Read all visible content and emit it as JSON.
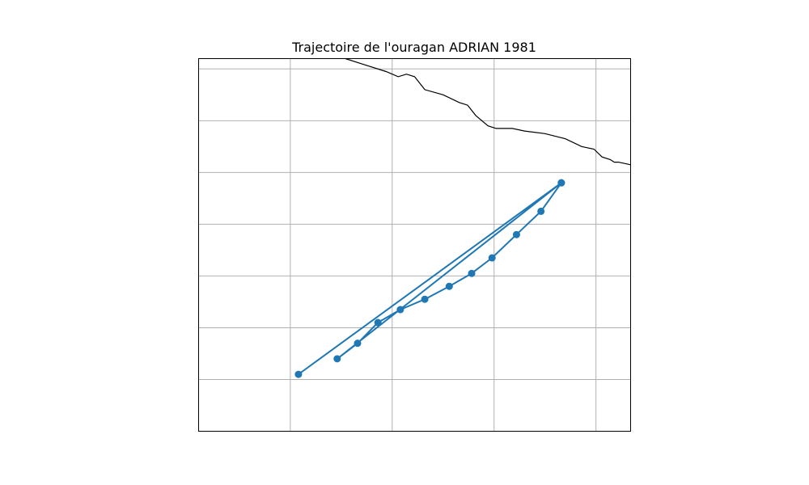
{
  "title": "Trajectoire de l'ouragan ADRIAN 1981",
  "colors": {
    "track": "#1f77b4",
    "grid": "#b0b0b0",
    "coast": "#000000",
    "background": "#ffffff"
  },
  "chart_data": {
    "type": "line",
    "title": "Trajectoire de l'ouragan ADRIAN 1981",
    "map_projection": "PlateCarree",
    "extent_lon": [
      -109.5,
      -98.9
    ],
    "extent_lat": [
      10.0,
      17.2
    ],
    "gridlines": true,
    "grid_lon": [
      -107.25,
      -104.75,
      -102.25,
      -99.75
    ],
    "grid_lat": [
      11.0,
      12.0,
      13.0,
      14.0,
      15.0,
      16.0,
      17.0
    ],
    "series": [
      {
        "lon": [
          -100.6,
          -101.1,
          -101.7,
          -102.3,
          -102.8,
          -103.35,
          -103.95,
          -104.55,
          -105.1,
          -105.6,
          -106.1,
          -100.6,
          -107.05
        ],
        "lat": [
          14.8,
          14.25,
          13.8,
          13.35,
          13.05,
          12.8,
          12.55,
          12.35,
          12.1,
          11.7,
          11.4,
          14.8,
          11.1
        ]
      }
    ],
    "coastline": {
      "lon": [
        -105.9,
        -105.5,
        -104.9,
        -104.6,
        -104.4,
        -104.2,
        -104.05,
        -103.95,
        -103.5,
        -103.1,
        -102.9,
        -102.7,
        -102.4,
        -102.2,
        -101.8,
        -101.5,
        -101.0,
        -100.5,
        -100.1,
        -99.8,
        -99.6,
        -99.4,
        -99.3,
        -99.2,
        -98.9
      ],
      "lat": [
        17.2,
        17.1,
        16.95,
        16.85,
        16.9,
        16.85,
        16.7,
        16.6,
        16.5,
        16.35,
        16.3,
        16.1,
        15.9,
        15.85,
        15.85,
        15.8,
        15.75,
        15.65,
        15.5,
        15.45,
        15.3,
        15.25,
        15.2,
        15.2,
        15.15
      ]
    }
  }
}
